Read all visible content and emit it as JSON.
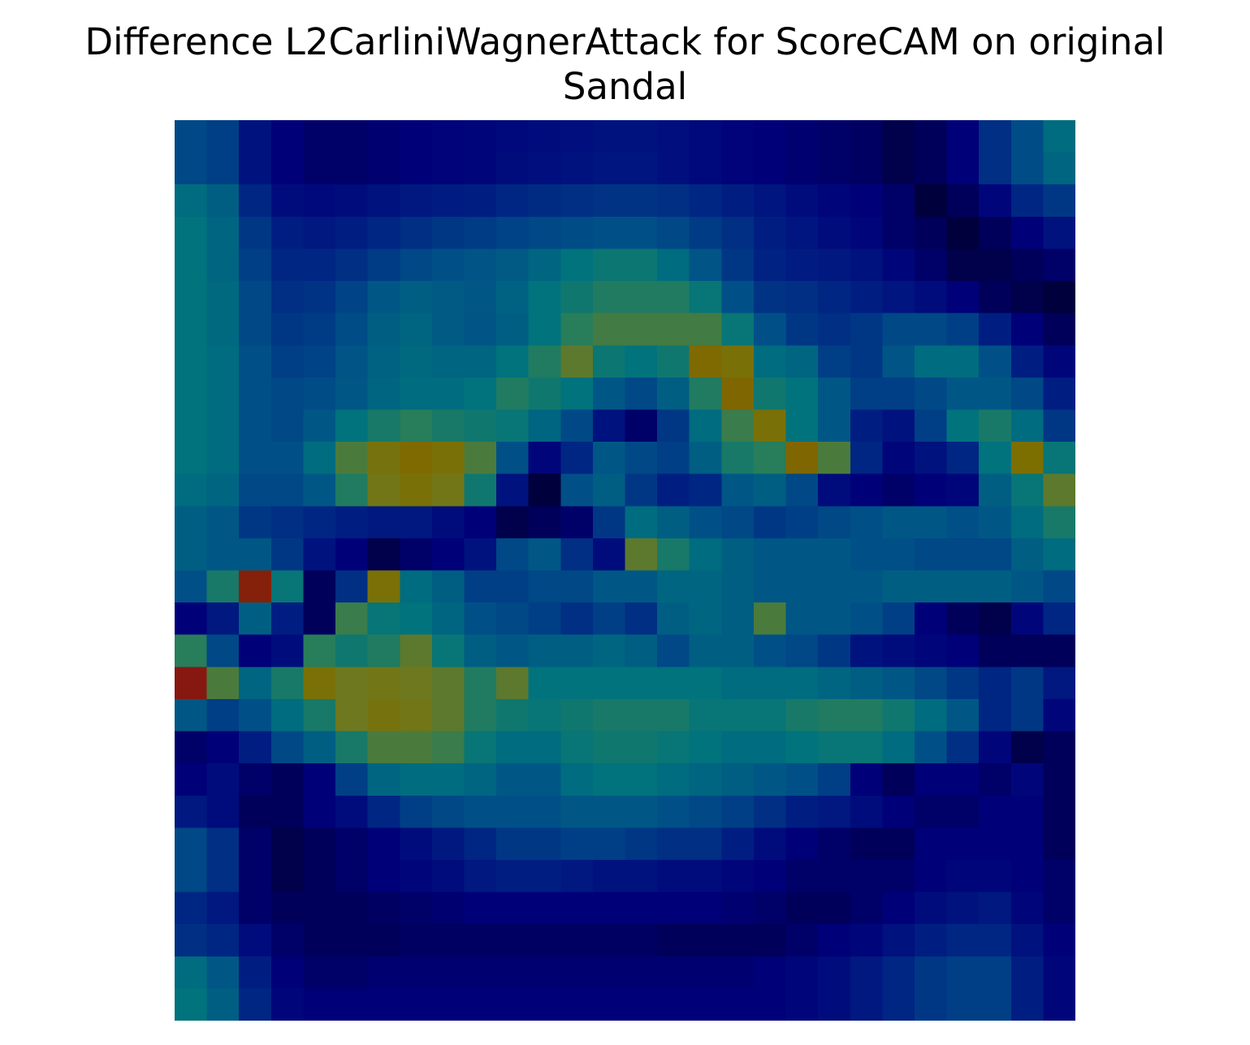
{
  "chart": {
    "title_line1": "Difference L2CarliniWagnerAttack for ScoreCAM on original",
    "title_line2": "Sandal"
  },
  "chart_data": {
    "type": "heatmap",
    "title": "Difference L2CarliniWagnerAttack for ScoreCAM on original Sandal",
    "rows": 28,
    "cols": 28,
    "axes_visible": false,
    "grid": false,
    "colorbar": false,
    "colormap": "jet overlay on dark-navy grayscale image",
    "values": [
      [
        0.3,
        0.28,
        0.16,
        0.1,
        0.08,
        0.08,
        0.09,
        0.1,
        0.11,
        0.12,
        0.13,
        0.14,
        0.15,
        0.16,
        0.16,
        0.15,
        0.13,
        0.11,
        0.1,
        0.09,
        0.08,
        0.07,
        0.04,
        0.06,
        0.1,
        0.24,
        0.31,
        0.4
      ],
      [
        0.3,
        0.28,
        0.16,
        0.1,
        0.08,
        0.08,
        0.09,
        0.1,
        0.11,
        0.12,
        0.14,
        0.15,
        0.16,
        0.17,
        0.17,
        0.15,
        0.13,
        0.11,
        0.1,
        0.09,
        0.08,
        0.07,
        0.04,
        0.06,
        0.1,
        0.24,
        0.31,
        0.38
      ],
      [
        0.4,
        0.36,
        0.22,
        0.14,
        0.13,
        0.14,
        0.16,
        0.18,
        0.19,
        0.2,
        0.22,
        0.23,
        0.24,
        0.25,
        0.25,
        0.24,
        0.22,
        0.2,
        0.17,
        0.14,
        0.12,
        0.1,
        0.08,
        0.02,
        0.06,
        0.12,
        0.22,
        0.26
      ],
      [
        0.42,
        0.38,
        0.26,
        0.2,
        0.18,
        0.2,
        0.22,
        0.24,
        0.26,
        0.27,
        0.29,
        0.3,
        0.31,
        0.32,
        0.32,
        0.3,
        0.27,
        0.24,
        0.2,
        0.17,
        0.14,
        0.12,
        0.08,
        0.06,
        0.02,
        0.06,
        0.1,
        0.16
      ],
      [
        0.42,
        0.38,
        0.28,
        0.22,
        0.22,
        0.24,
        0.27,
        0.3,
        0.32,
        0.33,
        0.35,
        0.38,
        0.42,
        0.45,
        0.45,
        0.4,
        0.33,
        0.26,
        0.21,
        0.19,
        0.18,
        0.16,
        0.12,
        0.08,
        0.04,
        0.04,
        0.06,
        0.08
      ],
      [
        0.42,
        0.39,
        0.3,
        0.24,
        0.25,
        0.29,
        0.34,
        0.36,
        0.35,
        0.34,
        0.37,
        0.42,
        0.46,
        0.5,
        0.5,
        0.5,
        0.44,
        0.32,
        0.25,
        0.24,
        0.22,
        0.2,
        0.17,
        0.14,
        0.1,
        0.06,
        0.04,
        0.02
      ],
      [
        0.42,
        0.39,
        0.3,
        0.26,
        0.27,
        0.31,
        0.36,
        0.38,
        0.35,
        0.33,
        0.36,
        0.42,
        0.52,
        0.55,
        0.55,
        0.55,
        0.55,
        0.44,
        0.32,
        0.26,
        0.24,
        0.26,
        0.3,
        0.3,
        0.28,
        0.2,
        0.1,
        0.06
      ],
      [
        0.42,
        0.4,
        0.32,
        0.28,
        0.29,
        0.33,
        0.37,
        0.39,
        0.38,
        0.38,
        0.42,
        0.5,
        0.58,
        0.45,
        0.42,
        0.46,
        0.7,
        0.66,
        0.4,
        0.38,
        0.28,
        0.26,
        0.33,
        0.4,
        0.4,
        0.32,
        0.2,
        0.12
      ],
      [
        0.42,
        0.4,
        0.32,
        0.3,
        0.31,
        0.34,
        0.38,
        0.4,
        0.4,
        0.42,
        0.5,
        0.46,
        0.42,
        0.34,
        0.3,
        0.36,
        0.5,
        0.72,
        0.46,
        0.42,
        0.34,
        0.28,
        0.28,
        0.3,
        0.34,
        0.34,
        0.3,
        0.2
      ],
      [
        0.42,
        0.4,
        0.32,
        0.3,
        0.34,
        0.42,
        0.48,
        0.52,
        0.48,
        0.46,
        0.44,
        0.38,
        0.3,
        0.16,
        0.08,
        0.26,
        0.4,
        0.54,
        0.66,
        0.42,
        0.34,
        0.2,
        0.16,
        0.28,
        0.42,
        0.48,
        0.4,
        0.26
      ],
      [
        0.42,
        0.4,
        0.32,
        0.32,
        0.4,
        0.56,
        0.64,
        0.7,
        0.66,
        0.56,
        0.32,
        0.12,
        0.22,
        0.34,
        0.3,
        0.28,
        0.36,
        0.48,
        0.52,
        0.72,
        0.56,
        0.22,
        0.12,
        0.16,
        0.22,
        0.42,
        0.68,
        0.44
      ],
      [
        0.4,
        0.38,
        0.3,
        0.3,
        0.34,
        0.5,
        0.62,
        0.66,
        0.62,
        0.46,
        0.16,
        0.02,
        0.32,
        0.36,
        0.26,
        0.2,
        0.22,
        0.34,
        0.36,
        0.3,
        0.14,
        0.1,
        0.08,
        0.1,
        0.12,
        0.36,
        0.44,
        0.58
      ],
      [
        0.36,
        0.34,
        0.26,
        0.24,
        0.22,
        0.2,
        0.18,
        0.18,
        0.14,
        0.1,
        0.04,
        0.06,
        0.08,
        0.26,
        0.4,
        0.36,
        0.32,
        0.3,
        0.26,
        0.28,
        0.3,
        0.32,
        0.34,
        0.34,
        0.32,
        0.34,
        0.4,
        0.48
      ],
      [
        0.36,
        0.34,
        0.34,
        0.26,
        0.16,
        0.1,
        0.04,
        0.08,
        0.1,
        0.16,
        0.3,
        0.34,
        0.24,
        0.14,
        0.58,
        0.48,
        0.4,
        0.36,
        0.34,
        0.34,
        0.34,
        0.32,
        0.32,
        0.3,
        0.3,
        0.3,
        0.36,
        0.4
      ],
      [
        0.32,
        0.48,
        0.94,
        0.44,
        0.06,
        0.24,
        0.66,
        0.4,
        0.36,
        0.28,
        0.28,
        0.3,
        0.3,
        0.34,
        0.34,
        0.38,
        0.38,
        0.36,
        0.34,
        0.34,
        0.34,
        0.34,
        0.36,
        0.36,
        0.36,
        0.36,
        0.34,
        0.3
      ],
      [
        0.1,
        0.18,
        0.36,
        0.2,
        0.06,
        0.54,
        0.44,
        0.42,
        0.38,
        0.32,
        0.3,
        0.28,
        0.24,
        0.28,
        0.24,
        0.36,
        0.38,
        0.36,
        0.56,
        0.34,
        0.34,
        0.32,
        0.28,
        0.1,
        0.06,
        0.04,
        0.12,
        0.22
      ],
      [
        0.52,
        0.3,
        0.1,
        0.14,
        0.52,
        0.46,
        0.5,
        0.58,
        0.44,
        0.36,
        0.34,
        0.36,
        0.36,
        0.38,
        0.36,
        0.3,
        0.36,
        0.36,
        0.32,
        0.3,
        0.26,
        0.16,
        0.14,
        0.12,
        0.1,
        0.06,
        0.06,
        0.06
      ],
      [
        0.98,
        0.56,
        0.38,
        0.48,
        0.66,
        0.6,
        0.62,
        0.6,
        0.58,
        0.5,
        0.58,
        0.42,
        0.42,
        0.42,
        0.42,
        0.42,
        0.42,
        0.4,
        0.4,
        0.4,
        0.38,
        0.36,
        0.34,
        0.3,
        0.26,
        0.22,
        0.26,
        0.18
      ],
      [
        0.34,
        0.28,
        0.32,
        0.4,
        0.48,
        0.6,
        0.64,
        0.62,
        0.58,
        0.5,
        0.46,
        0.44,
        0.46,
        0.48,
        0.48,
        0.48,
        0.44,
        0.44,
        0.44,
        0.48,
        0.5,
        0.5,
        0.46,
        0.4,
        0.34,
        0.22,
        0.26,
        0.12
      ],
      [
        0.08,
        0.1,
        0.2,
        0.3,
        0.36,
        0.48,
        0.56,
        0.56,
        0.54,
        0.44,
        0.4,
        0.4,
        0.44,
        0.46,
        0.46,
        0.44,
        0.42,
        0.4,
        0.4,
        0.42,
        0.44,
        0.44,
        0.4,
        0.32,
        0.24,
        0.12,
        0.04,
        0.06
      ],
      [
        0.1,
        0.14,
        0.08,
        0.06,
        0.1,
        0.28,
        0.38,
        0.4,
        0.4,
        0.38,
        0.34,
        0.34,
        0.4,
        0.42,
        0.42,
        0.4,
        0.38,
        0.36,
        0.34,
        0.32,
        0.28,
        0.1,
        0.06,
        0.1,
        0.1,
        0.08,
        0.12,
        0.06
      ],
      [
        0.18,
        0.14,
        0.06,
        0.06,
        0.1,
        0.14,
        0.22,
        0.28,
        0.3,
        0.32,
        0.32,
        0.32,
        0.34,
        0.34,
        0.34,
        0.32,
        0.3,
        0.28,
        0.24,
        0.2,
        0.18,
        0.14,
        0.1,
        0.08,
        0.08,
        0.1,
        0.1,
        0.06
      ],
      [
        0.3,
        0.24,
        0.08,
        0.04,
        0.06,
        0.08,
        0.1,
        0.14,
        0.18,
        0.22,
        0.26,
        0.26,
        0.28,
        0.28,
        0.26,
        0.24,
        0.24,
        0.2,
        0.14,
        0.1,
        0.08,
        0.06,
        0.06,
        0.1,
        0.1,
        0.1,
        0.1,
        0.06
      ],
      [
        0.3,
        0.24,
        0.08,
        0.04,
        0.06,
        0.08,
        0.1,
        0.12,
        0.14,
        0.18,
        0.2,
        0.2,
        0.18,
        0.16,
        0.16,
        0.14,
        0.14,
        0.12,
        0.1,
        0.08,
        0.08,
        0.08,
        0.08,
        0.1,
        0.12,
        0.12,
        0.1,
        0.08
      ],
      [
        0.22,
        0.18,
        0.08,
        0.06,
        0.06,
        0.06,
        0.07,
        0.08,
        0.09,
        0.1,
        0.1,
        0.1,
        0.1,
        0.1,
        0.1,
        0.1,
        0.1,
        0.09,
        0.08,
        0.06,
        0.06,
        0.08,
        0.1,
        0.14,
        0.16,
        0.18,
        0.12,
        0.08
      ],
      [
        0.24,
        0.22,
        0.14,
        0.08,
        0.06,
        0.06,
        0.06,
        0.07,
        0.07,
        0.07,
        0.07,
        0.07,
        0.07,
        0.07,
        0.07,
        0.06,
        0.06,
        0.06,
        0.06,
        0.08,
        0.1,
        0.12,
        0.16,
        0.2,
        0.22,
        0.22,
        0.16,
        0.1
      ],
      [
        0.4,
        0.34,
        0.2,
        0.1,
        0.08,
        0.08,
        0.09,
        0.09,
        0.09,
        0.09,
        0.09,
        0.09,
        0.09,
        0.09,
        0.09,
        0.09,
        0.09,
        0.09,
        0.1,
        0.12,
        0.14,
        0.18,
        0.22,
        0.26,
        0.28,
        0.28,
        0.2,
        0.12
      ],
      [
        0.42,
        0.36,
        0.22,
        0.12,
        0.1,
        0.1,
        0.1,
        0.1,
        0.1,
        0.1,
        0.1,
        0.1,
        0.1,
        0.1,
        0.1,
        0.1,
        0.1,
        0.1,
        0.1,
        0.12,
        0.14,
        0.18,
        0.22,
        0.26,
        0.28,
        0.28,
        0.2,
        0.12
      ]
    ]
  }
}
